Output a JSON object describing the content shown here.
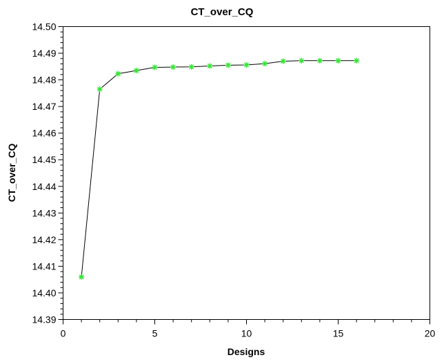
{
  "chart_data": {
    "type": "line",
    "title": "CT_over_CQ",
    "xlabel": "Designs",
    "ylabel": "CT_over_CQ",
    "xlim": [
      0,
      20
    ],
    "ylim": [
      14.39,
      14.5
    ],
    "x_major_ticks": [
      0,
      5,
      10,
      15,
      20
    ],
    "x_tick_labels": [
      "0",
      "5",
      "10",
      "15",
      "20"
    ],
    "x_minor_step": 1,
    "y_major_ticks": [
      14.39,
      14.4,
      14.41,
      14.42,
      14.43,
      14.44,
      14.45,
      14.46,
      14.47,
      14.48,
      14.49,
      14.5
    ],
    "y_tick_labels": [
      "14.39",
      "14.40",
      "14.41",
      "14.42",
      "14.43",
      "14.44",
      "14.45",
      "14.46",
      "14.47",
      "14.48",
      "14.49",
      "14.50"
    ],
    "y_minor_step": 0.002,
    "grid": false,
    "marker_color": "#33e633",
    "line_color": "#000000",
    "series": [
      {
        "x": [
          1,
          2,
          3,
          4,
          5,
          6,
          7,
          8,
          9,
          10,
          11,
          12,
          13,
          14,
          15,
          16
        ],
        "values": [
          14.406,
          14.4765,
          14.4823,
          14.4835,
          14.4847,
          14.4848,
          14.4849,
          14.4852,
          14.4855,
          14.4856,
          14.4861,
          14.487,
          14.4872,
          14.4872,
          14.4872,
          14.4872
        ]
      }
    ]
  }
}
